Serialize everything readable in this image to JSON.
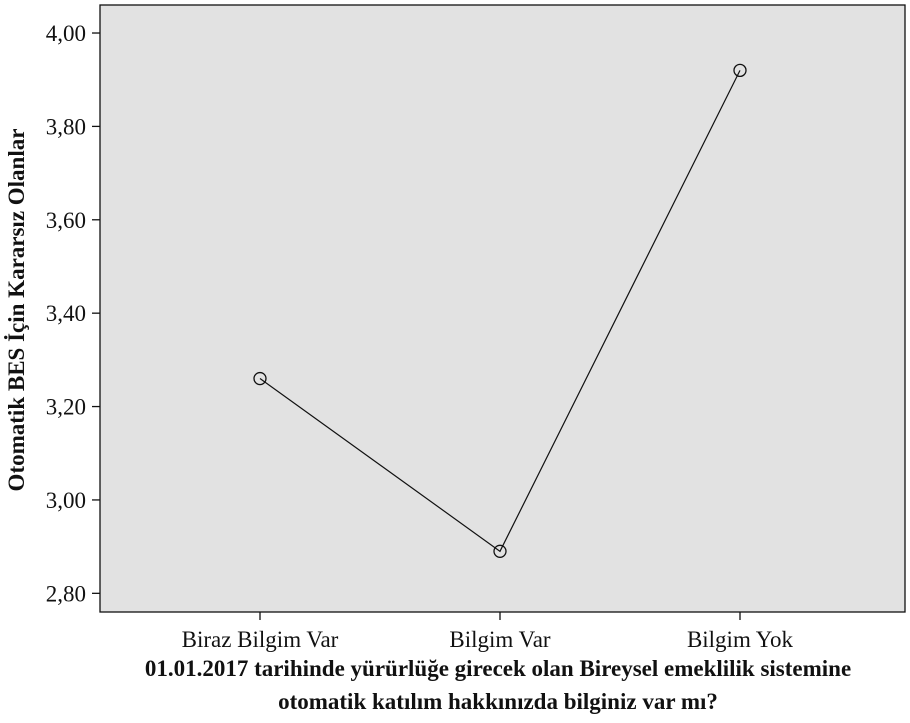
{
  "chart_data": {
    "type": "line",
    "title": "",
    "xlabel_lines": [
      "01.01.2017 tarihinde yürürlüğe girecek olan Bireysel emeklilik sistemine",
      "otomatik katılım hakkınızda bilginiz var mı?"
    ],
    "ylabel": "Otomatik BES İçin Kararsız Olanlar",
    "categories": [
      "Biraz Bilgim Var",
      "Bilgim Var",
      "Bilgim Yok"
    ],
    "series": [
      {
        "values": [
          3.26,
          2.89,
          3.92
        ],
        "marker": "open-circle",
        "color": "#111111"
      }
    ],
    "ylim": [
      2.76,
      4.06
    ],
    "yticks": [
      2.8,
      3.0,
      3.2,
      3.4,
      3.6,
      3.8,
      4.0
    ],
    "ytick_labels": [
      "2,80",
      "3,00",
      "3,20",
      "3,40",
      "3,60",
      "3,80",
      "4,00"
    ],
    "plot_background": "#e2e2e2",
    "grid": false,
    "legend": "none"
  }
}
